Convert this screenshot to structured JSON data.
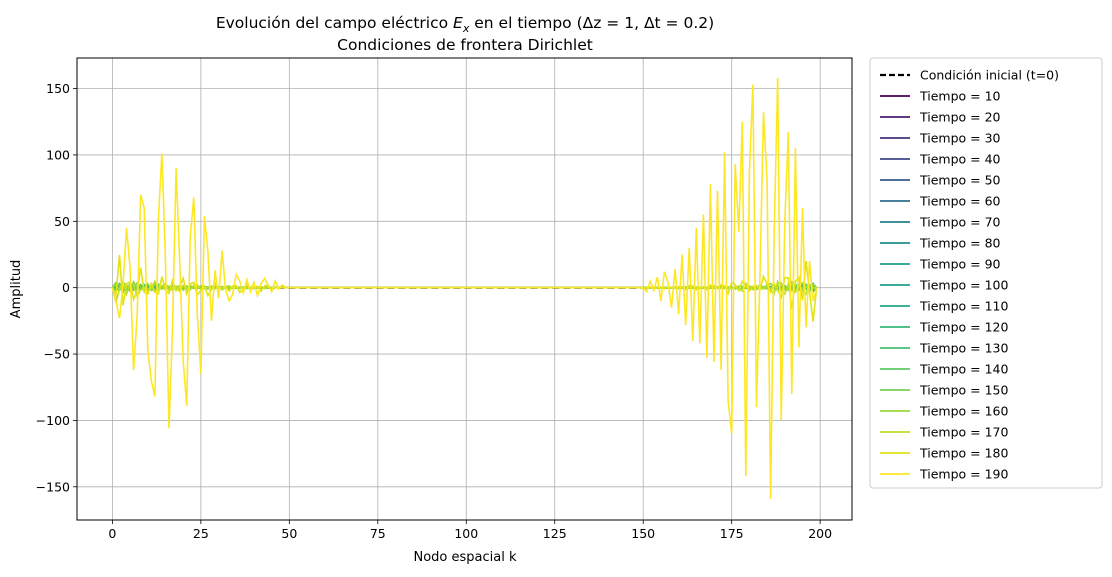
{
  "chart_data": {
    "type": "line",
    "title_line1_prefix": "Evolución del campo eléctrico ",
    "title_symbol": "E",
    "title_symbol_sub": "x",
    "title_line1_suffix": " en el tiempo (Δz = 1, Δt = 0.2)",
    "title_line2": "Condiciones de frontera Dirichlet",
    "xlabel": "Nodo espacial k",
    "ylabel": "Amplitud",
    "xlim": [
      -10,
      209
    ],
    "ylim": [
      -175,
      173
    ],
    "x_ticks": [
      0,
      25,
      50,
      75,
      100,
      125,
      150,
      175,
      200
    ],
    "y_ticks": [
      -150,
      -100,
      -50,
      0,
      50,
      100,
      150
    ],
    "y_tick_labels": [
      "−150",
      "−100",
      "−50",
      "0",
      "50",
      "100",
      "150"
    ],
    "grid": true,
    "legend_position": "outside-right",
    "initial": {
      "name": "Condición inicial (t=0)",
      "color": "#000000",
      "style": "dashed",
      "x": [
        0,
        199
      ],
      "y": [
        0,
        0
      ]
    },
    "series": [
      {
        "name": "Tiempo = 10",
        "color": "#440154",
        "amp": 0.4
      },
      {
        "name": "Tiempo = 20",
        "color": "#481b6d",
        "amp": 0.6
      },
      {
        "name": "Tiempo = 30",
        "color": "#46327e",
        "amp": 0.8
      },
      {
        "name": "Tiempo = 40",
        "color": "#3f4788",
        "amp": 1.0
      },
      {
        "name": "Tiempo = 50",
        "color": "#365c8d",
        "amp": 1.2
      },
      {
        "name": "Tiempo = 60",
        "color": "#2e6e8e",
        "amp": 1.4
      },
      {
        "name": "Tiempo = 70",
        "color": "#277f8e",
        "amp": 1.6
      },
      {
        "name": "Tiempo = 80",
        "color": "#21918c",
        "amp": 1.8
      },
      {
        "name": "Tiempo = 90",
        "color": "#1fa187",
        "amp": 2.0
      },
      {
        "name": "Tiempo = 100",
        "color": "#1fa088",
        "amp": 2.2
      },
      {
        "name": "Tiempo = 110",
        "color": "#22a884",
        "amp": 2.5
      },
      {
        "name": "Tiempo = 120",
        "color": "#35b779",
        "amp": 3.0
      },
      {
        "name": "Tiempo = 130",
        "color": "#44bf70",
        "amp": 3.5
      },
      {
        "name": "Tiempo = 140",
        "color": "#5ec962",
        "amp": 4.0
      },
      {
        "name": "Tiempo = 150",
        "color": "#7ad151",
        "amp": 5.0
      },
      {
        "name": "Tiempo = 160",
        "color": "#9bd93c",
        "amp": 7.0
      },
      {
        "name": "Tiempo = 170",
        "color": "#bddf26",
        "amp": 12.0
      },
      {
        "name": "Tiempo = 180",
        "color": "#dfe318",
        "amp": 25.0
      },
      {
        "name": "Tiempo = 190",
        "color": "#fde725",
        "amp": 60.0
      }
    ],
    "t190": {
      "left": {
        "x": [
          0,
          1,
          2,
          3,
          4,
          5,
          6,
          7,
          8,
          9,
          10,
          11,
          12,
          13,
          14,
          15,
          16,
          17,
          18,
          19,
          20,
          21,
          22,
          23,
          24,
          25,
          26,
          27,
          28,
          29,
          30,
          31,
          32,
          33,
          34,
          35,
          36,
          37,
          38,
          39,
          40,
          41,
          42,
          43,
          44,
          45,
          46,
          47,
          48,
          49,
          50
        ],
        "y": [
          0,
          -10,
          -23,
          2,
          45,
          15,
          -62,
          -20,
          70,
          60,
          -47,
          -70,
          -82,
          52,
          101,
          20,
          -106,
          -31,
          90,
          22,
          -55,
          -89,
          38,
          68,
          -20,
          -65,
          54,
          27,
          -25,
          13,
          -8,
          28,
          -2,
          -10,
          -5,
          10,
          5,
          -4,
          6,
          -3,
          4,
          -6,
          3,
          7,
          2,
          -3,
          5,
          -1,
          2,
          0,
          0
        ]
      },
      "right": {
        "x": [
          150,
          151,
          152,
          153,
          154,
          155,
          156,
          157,
          158,
          159,
          160,
          161,
          162,
          163,
          164,
          165,
          166,
          167,
          168,
          169,
          170,
          171,
          172,
          173,
          174,
          175,
          176,
          177,
          178,
          179,
          180,
          181,
          182,
          183,
          184,
          185,
          186,
          187,
          188,
          189,
          190,
          191,
          192,
          193,
          194,
          195,
          196,
          197,
          198,
          199
        ],
        "y": [
          0,
          -3,
          5,
          -2,
          8,
          -10,
          12,
          4,
          -15,
          14,
          -20,
          25,
          -28,
          30,
          -40,
          45,
          -42,
          55,
          -53,
          78,
          -56,
          73,
          -62,
          102,
          -85,
          -110,
          93,
          42,
          125,
          -142,
          87,
          153,
          -90,
          10,
          132,
          80,
          -159,
          39,
          158,
          -100,
          50,
          117,
          -80,
          105,
          -45,
          60,
          -30,
          20,
          -10,
          0
        ]
      }
    }
  }
}
